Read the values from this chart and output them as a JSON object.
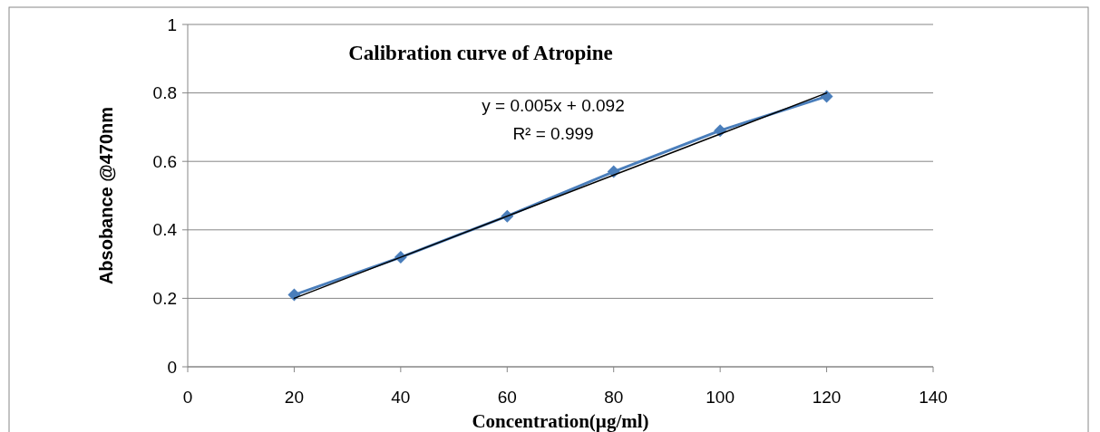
{
  "chart_data": {
    "type": "line",
    "title": "Calibration curve of Atropine",
    "xlabel": "Concentration(µg/ml)",
    "ylabel": "Absobance @470nm",
    "annotations": [
      "y = 0.005x + 0.092",
      "R² = 0.999"
    ],
    "x": [
      20,
      40,
      60,
      80,
      100,
      120
    ],
    "series": [
      {
        "color": "#4a7ebb",
        "values": [
          0.21,
          0.32,
          0.44,
          0.57,
          0.69,
          0.79
        ],
        "marker": "diamond"
      },
      {
        "type": "line",
        "color": "#000000",
        "x": [
          20,
          120
        ],
        "values": [
          0.2,
          0.8
        ],
        "marker": "none"
      }
    ],
    "xlim": [
      0,
      140
    ],
    "xticks": [
      0,
      20,
      40,
      60,
      80,
      100,
      120,
      140
    ],
    "ylim": [
      0,
      1
    ],
    "yticks": [
      0,
      0.2,
      0.4,
      0.6,
      0.8,
      1
    ],
    "grid": "y",
    "line_style": "solid"
  }
}
